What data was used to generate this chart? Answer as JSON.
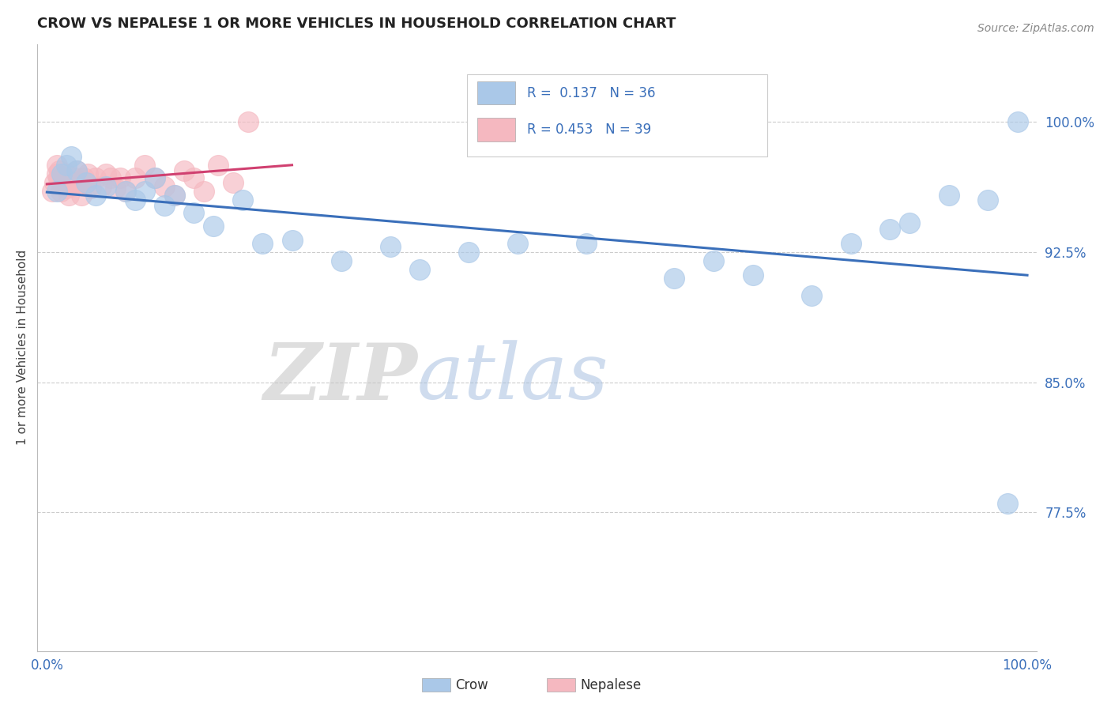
{
  "title": "CROW VS NEPALESE 1 OR MORE VEHICLES IN HOUSEHOLD CORRELATION CHART",
  "ylabel": "1 or more Vehicles in Household",
  "source_text": "Source: ZipAtlas.com",
  "watermark_zip": "ZIP",
  "watermark_atlas": "atlas",
  "crow_R": 0.137,
  "crow_N": 36,
  "nepalese_R": 0.453,
  "nepalese_N": 39,
  "crow_color": "#aac8e8",
  "crow_line_color": "#3a6fba",
  "nepalese_color": "#f5b8c0",
  "nepalese_line_color": "#d04070",
  "yticks": [
    0.775,
    0.85,
    0.925,
    1.0
  ],
  "ytick_labels": [
    "77.5%",
    "85.0%",
    "92.5%",
    "100.0%"
  ],
  "ylim": [
    0.695,
    1.045
  ],
  "xlim": [
    -0.01,
    1.01
  ],
  "crow_x": [
    0.01,
    0.015,
    0.02,
    0.025,
    0.03,
    0.04,
    0.05,
    0.06,
    0.08,
    0.09,
    0.1,
    0.11,
    0.12,
    0.13,
    0.15,
    0.17,
    0.2,
    0.22,
    0.25,
    0.3,
    0.35,
    0.38,
    0.43,
    0.48,
    0.55,
    0.64,
    0.68,
    0.72,
    0.78,
    0.82,
    0.86,
    0.88,
    0.92,
    0.96,
    0.98,
    0.99
  ],
  "crow_y": [
    0.96,
    0.97,
    0.975,
    0.98,
    0.972,
    0.965,
    0.958,
    0.963,
    0.96,
    0.955,
    0.96,
    0.968,
    0.952,
    0.958,
    0.948,
    0.94,
    0.955,
    0.93,
    0.932,
    0.92,
    0.928,
    0.915,
    0.925,
    0.93,
    0.93,
    0.91,
    0.92,
    0.912,
    0.9,
    0.93,
    0.938,
    0.942,
    0.958,
    0.955,
    0.78,
    1.0
  ],
  "nepalese_x": [
    0.005,
    0.008,
    0.01,
    0.01,
    0.012,
    0.013,
    0.014,
    0.015,
    0.018,
    0.02,
    0.02,
    0.022,
    0.025,
    0.028,
    0.03,
    0.032,
    0.035,
    0.038,
    0.04,
    0.042,
    0.045,
    0.05,
    0.055,
    0.06,
    0.065,
    0.07,
    0.075,
    0.08,
    0.09,
    0.1,
    0.11,
    0.12,
    0.13,
    0.14,
    0.15,
    0.16,
    0.175,
    0.19,
    0.205
  ],
  "nepalese_y": [
    0.96,
    0.965,
    0.97,
    0.975,
    0.968,
    0.972,
    0.96,
    0.965,
    0.968,
    0.962,
    0.97,
    0.958,
    0.963,
    0.968,
    0.972,
    0.965,
    0.958,
    0.968,
    0.965,
    0.97,
    0.962,
    0.968,
    0.963,
    0.97,
    0.968,
    0.962,
    0.968,
    0.96,
    0.968,
    0.975,
    0.968,
    0.963,
    0.958,
    0.972,
    0.968,
    0.96,
    0.975,
    0.965,
    1.0
  ]
}
